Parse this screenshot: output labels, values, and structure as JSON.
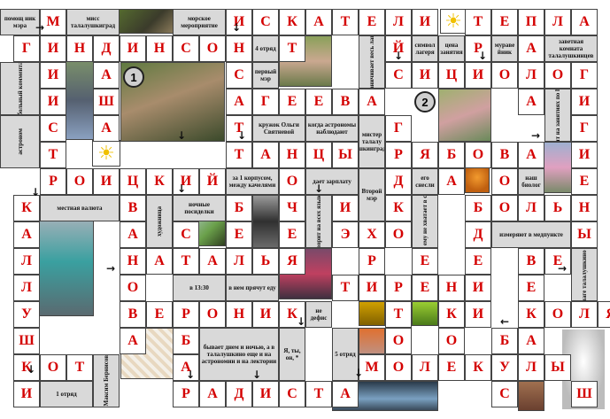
{
  "puzzle": {
    "grid": [
      "Пмиссмирскатели|теппла",
      "гиндинсон4стпвайар",
      "",
      ""
    ]
  },
  "letters": [
    {
      "id": "r0c1",
      "v": "М"
    },
    {
      "id": "r0c2",
      "v": "И"
    },
    {
      "id": "r0c8",
      "v": "И"
    },
    {
      "id": "r0c9",
      "v": "С"
    },
    {
      "id": "r0c10",
      "v": "К"
    },
    {
      "id": "r0c11",
      "v": "А"
    },
    {
      "id": "r0c12",
      "v": "Т"
    },
    {
      "id": "r0c13",
      "v": "Е"
    },
    {
      "id": "r0c14",
      "v": "Л"
    },
    {
      "id": "r0c15",
      "v": "И"
    },
    {
      "id": "r0c17",
      "v": "Т"
    },
    {
      "id": "r0c18",
      "v": "Е"
    },
    {
      "id": "r0c19",
      "v": "П"
    },
    {
      "id": "r0c20",
      "v": "Л"
    },
    {
      "id": "r0c21",
      "v": "А"
    },
    {
      "id": "r1c0",
      "v": "Г"
    },
    {
      "id": "r1c1",
      "v": "И"
    },
    {
      "id": "r1c2",
      "v": "Н"
    },
    {
      "id": "r1c3",
      "v": "Д"
    },
    {
      "id": "r1c4",
      "v": "И"
    },
    {
      "id": "r1c5",
      "v": "Н"
    },
    {
      "id": "r1c6",
      "v": "С"
    },
    {
      "id": "r1c7",
      "v": "О"
    },
    {
      "id": "r1c8",
      "v": "Н"
    },
    {
      "id": "r1c10",
      "v": "Т"
    },
    {
      "id": "r1c14",
      "v": "Й"
    },
    {
      "id": "r1c17",
      "v": "Р"
    },
    {
      "id": "r1c19",
      "v": "А"
    },
    {
      "id": "r2c1",
      "v": "И"
    },
    {
      "id": "r2c3",
      "v": "А"
    },
    {
      "id": "r2c8",
      "v": "С"
    },
    {
      "id": "r2c13",
      "v": "Д"
    },
    {
      "id": "r2c14",
      "v": "С"
    },
    {
      "id": "r2c15",
      "v": "И"
    },
    {
      "id": "r2c16",
      "v": "Ц"
    },
    {
      "id": "r2c17",
      "v": "И"
    },
    {
      "id": "r2c18",
      "v": "О"
    },
    {
      "id": "r2c19",
      "v": "Л"
    },
    {
      "id": "r2c20",
      "v": "О"
    },
    {
      "id": "r2c21",
      "v": "Г"
    },
    {
      "id": "r3c1",
      "v": "И"
    },
    {
      "id": "r3c3",
      "v": "Ш"
    },
    {
      "id": "r3c8",
      "v": "А"
    },
    {
      "id": "r3c9",
      "v": "Г"
    },
    {
      "id": "r3c10",
      "v": "Е"
    },
    {
      "id": "r3c11",
      "v": "Е"
    },
    {
      "id": "r3c12",
      "v": "В"
    },
    {
      "id": "r3c13",
      "v": "А"
    },
    {
      "id": "r3c19",
      "v": "А"
    },
    {
      "id": "r3c21",
      "v": "И"
    },
    {
      "id": "r4c1",
      "v": "С"
    },
    {
      "id": "r4c3",
      "v": "А"
    },
    {
      "id": "r4c8",
      "v": "Т"
    },
    {
      "id": "r4c14",
      "v": "Г"
    },
    {
      "id": "r4c20",
      "v": "Э"
    },
    {
      "id": "r4c21",
      "v": "Г"
    },
    {
      "id": "r5c1",
      "v": "Т"
    },
    {
      "id": "r5c8",
      "v": "Т"
    },
    {
      "id": "r5c9",
      "v": "А"
    },
    {
      "id": "r5c10",
      "v": "Н"
    },
    {
      "id": "r5c11",
      "v": "Ц"
    },
    {
      "id": "r5c12",
      "v": "Ы"
    },
    {
      "id": "r5c14",
      "v": "Р"
    },
    {
      "id": "r5c15",
      "v": "Я"
    },
    {
      "id": "r5c16",
      "v": "Б"
    },
    {
      "id": "r5c17",
      "v": "О"
    },
    {
      "id": "r5c18",
      "v": "В"
    },
    {
      "id": "r5c19",
      "v": "А"
    },
    {
      "id": "r5c21",
      "v": "И"
    },
    {
      "id": "r6c1",
      "v": "Р"
    },
    {
      "id": "r6c2",
      "v": "О"
    },
    {
      "id": "r6c3",
      "v": "И"
    },
    {
      "id": "r6c4",
      "v": "Ц"
    },
    {
      "id": "r6c5",
      "v": "К"
    },
    {
      "id": "r6c6",
      "v": "И"
    },
    {
      "id": "r6c7",
      "v": "Й"
    },
    {
      "id": "r6c10",
      "v": "О"
    },
    {
      "id": "r6c14",
      "v": "Д"
    },
    {
      "id": "r6c16",
      "v": "А"
    },
    {
      "id": "r6c18",
      "v": "О"
    },
    {
      "id": "r6c21",
      "v": "Е"
    },
    {
      "id": "r7c0",
      "v": "К"
    },
    {
      "id": "r7c4",
      "v": "В"
    },
    {
      "id": "r7c6",
      "v": "О"
    },
    {
      "id": "r7c8",
      "v": "Б"
    },
    {
      "id": "r7c10",
      "v": "Ч"
    },
    {
      "id": "r7c12",
      "v": "И"
    },
    {
      "id": "r7c14",
      "v": "К"
    },
    {
      "id": "r7c15",
      "v": "О"
    },
    {
      "id": "r7c17",
      "v": "Б"
    },
    {
      "id": "r7c18",
      "v": "О"
    },
    {
      "id": "r7c19",
      "v": "Л"
    },
    {
      "id": "r7c20",
      "v": "Ь"
    },
    {
      "id": "r7c21",
      "v": "Н"
    },
    {
      "id": "r8c0",
      "v": "А"
    },
    {
      "id": "r8c4",
      "v": "А"
    },
    {
      "id": "r8c6",
      "v": "С"
    },
    {
      "id": "r8c8",
      "v": "Е"
    },
    {
      "id": "r8c10",
      "v": "Е"
    },
    {
      "id": "r8c12",
      "v": "Э"
    },
    {
      "id": "r8c13",
      "v": "Х"
    },
    {
      "id": "r8c14",
      "v": "О"
    },
    {
      "id": "r8c15",
      "v": "Л"
    },
    {
      "id": "r8c17",
      "v": "Д"
    },
    {
      "id": "r8c21",
      "v": "Ы"
    },
    {
      "id": "r9c0",
      "v": "Л"
    },
    {
      "id": "r9c4",
      "v": "Н"
    },
    {
      "id": "r9c5",
      "v": "А"
    },
    {
      "id": "r9c6",
      "v": "Т"
    },
    {
      "id": "r9c7",
      "v": "А"
    },
    {
      "id": "r9c8",
      "v": "Л"
    },
    {
      "id": "r9c9",
      "v": "Ь"
    },
    {
      "id": "r9c10",
      "v": "Я"
    },
    {
      "id": "r9c13",
      "v": "Р"
    },
    {
      "id": "r9c15",
      "v": "Е"
    },
    {
      "id": "r9c17",
      "v": "Е"
    },
    {
      "id": "r9c19",
      "v": "В"
    },
    {
      "id": "r9c20",
      "v": "Е"
    },
    {
      "id": "r9c21",
      "v": "С"
    },
    {
      "id": "r10c0",
      "v": "Л"
    },
    {
      "id": "r10c4",
      "v": "О"
    },
    {
      "id": "r10c6",
      "v": "Е"
    },
    {
      "id": "r10c12",
      "v": "Т"
    },
    {
      "id": "r10c13",
      "v": "И"
    },
    {
      "id": "r10c14",
      "v": "Р"
    },
    {
      "id": "r10c15",
      "v": "Е"
    },
    {
      "id": "r10c16",
      "v": "Н"
    },
    {
      "id": "r10c17",
      "v": "И"
    },
    {
      "id": "r10c19",
      "v": "Е"
    },
    {
      "id": "r11c0",
      "v": "У"
    },
    {
      "id": "r11c4",
      "v": "В"
    },
    {
      "id": "r11c5",
      "v": "Е"
    },
    {
      "id": "r11c6",
      "v": "Р"
    },
    {
      "id": "r11c7",
      "v": "О"
    },
    {
      "id": "r11c8",
      "v": "Н"
    },
    {
      "id": "r11c9",
      "v": "И"
    },
    {
      "id": "r11c10",
      "v": "К"
    },
    {
      "id": "r11c11",
      "v": "А"
    },
    {
      "id": "r11c14",
      "v": "Т"
    },
    {
      "id": "r11c16",
      "v": "К"
    },
    {
      "id": "r11c17",
      "v": "И"
    },
    {
      "id": "r11c19",
      "v": "К"
    },
    {
      "id": "r11c20",
      "v": "О"
    },
    {
      "id": "r11c21",
      "v": "Л"
    },
    {
      "id": "r11c22",
      "v": "Я"
    },
    {
      "id": "r12c0",
      "v": "Ш"
    },
    {
      "id": "r12c4",
      "v": "А"
    },
    {
      "id": "r12c6",
      "v": "Б"
    },
    {
      "id": "r12c8",
      "v": "У"
    },
    {
      "id": "r12c10",
      "v": "Л"
    },
    {
      "id": "r12c14",
      "v": "О"
    },
    {
      "id": "r12c16",
      "v": "О"
    },
    {
      "id": "r12c18",
      "v": "Б"
    },
    {
      "id": "r12c19",
      "v": "А"
    },
    {
      "id": "r13c0",
      "v": "К"
    },
    {
      "id": "r13c1",
      "v": "О"
    },
    {
      "id": "r13c2",
      "v": "Т"
    },
    {
      "id": "r13c6",
      "v": "А"
    },
    {
      "id": "r13c8",
      "v": "О"
    },
    {
      "id": "r13c10",
      "v": "Н"
    },
    {
      "id": "r13c13",
      "v": "М"
    },
    {
      "id": "r13c14",
      "v": "О"
    },
    {
      "id": "r13c15",
      "v": "Л"
    },
    {
      "id": "r13c16",
      "v": "Е"
    },
    {
      "id": "r13c17",
      "v": "К"
    },
    {
      "id": "r13c18",
      "v": "У"
    },
    {
      "id": "r13c19",
      "v": "Л"
    },
    {
      "id": "r13c20",
      "v": "Ы"
    },
    {
      "id": "r14c0",
      "v": "И"
    },
    {
      "id": "r14c6",
      "v": "Р"
    },
    {
      "id": "r14c7",
      "v": "А"
    },
    {
      "id": "r14c8",
      "v": "Д"
    },
    {
      "id": "r14c9",
      "v": "И"
    },
    {
      "id": "r14c10",
      "v": "С"
    },
    {
      "id": "r14c11",
      "v": "Т"
    },
    {
      "id": "r14c12",
      "v": "А"
    },
    {
      "id": "r14c18",
      "v": "С"
    },
    {
      "id": "r14c21",
      "v": "Ш"
    }
  ],
  "clues": [
    {
      "id": "c-pomoshnik",
      "text": "помощ ник мэра"
    },
    {
      "id": "c-miss",
      "text": "мисс талалушкиград"
    },
    {
      "id": "c-marine",
      "text": "морское мероприятие"
    },
    {
      "id": "c-otryad4",
      "text": "4 отряд"
    },
    {
      "id": "c-ograniczivaet",
      "text": "ограничивает весь лагерь"
    },
    {
      "id": "c-simvol",
      "text": "символ лагеря"
    },
    {
      "id": "c-cena",
      "text": "цена занятия"
    },
    {
      "id": "c-muravei",
      "text": "мураве йник"
    },
    {
      "id": "c-zavetnaya",
      "text": "заветная комната талалушкинцев"
    },
    {
      "id": "c-football",
      "text": "футбольный комментатор"
    },
    {
      "id": "c-pervy",
      "text": "первый мэр"
    },
    {
      "id": "c-kruzhok",
      "text": "кружок Ольги Святневой"
    },
    {
      "id": "c-kogda",
      "text": "когда астрономы наблюдают"
    },
    {
      "id": "c-mister",
      "text": "мистер талалу шкинград"
    },
    {
      "id": "c-stoit",
      "text": "стоит на занятиях по html"
    },
    {
      "id": "c-astronom",
      "text": "астроном"
    },
    {
      "id": "c-korpus",
      "text": "за 1 корпусом, между качелями"
    },
    {
      "id": "c-zarplata",
      "text": "дает зарплату"
    },
    {
      "id": "c-vtoroy",
      "text": "Второй мэр"
    },
    {
      "id": "c-ego",
      "text": "его снесли"
    },
    {
      "id": "c-nash",
      "text": "наш биолог"
    },
    {
      "id": "c-valuta",
      "text": "местная валюта"
    },
    {
      "id": "c-hudozhnica",
      "text": "художница"
    },
    {
      "id": "c-posidelki",
      "text": "ночные посиделки"
    },
    {
      "id": "c-govorit",
      "text": "говорит на всех языках"
    },
    {
      "id": "c-vse",
      "text": "все ему не хватает в супе"
    },
    {
      "id": "c-medpunkt",
      "text": "измеряют в медпункте"
    },
    {
      "id": "c-flag",
      "text": "на флаге талалушкино (*ко)"
    },
    {
      "id": "c-1330",
      "text": "в 13:30"
    },
    {
      "id": "c-edu",
      "text": "в нем прячут еду"
    },
    {
      "id": "c-nedefis",
      "text": "не дефис"
    },
    {
      "id": "c-byvaet",
      "text": "бывает днем и ночью, а в талалушкино еще и на астрономии и на лектории"
    },
    {
      "id": "c-yaty",
      "text": "Я, ты, он, *"
    },
    {
      "id": "c-otryad5",
      "text": "5 отряд"
    },
    {
      "id": "c-maksim",
      "text": "Максим Бернисов"
    },
    {
      "id": "c-otryad1",
      "text": "1 отряд"
    }
  ]
}
